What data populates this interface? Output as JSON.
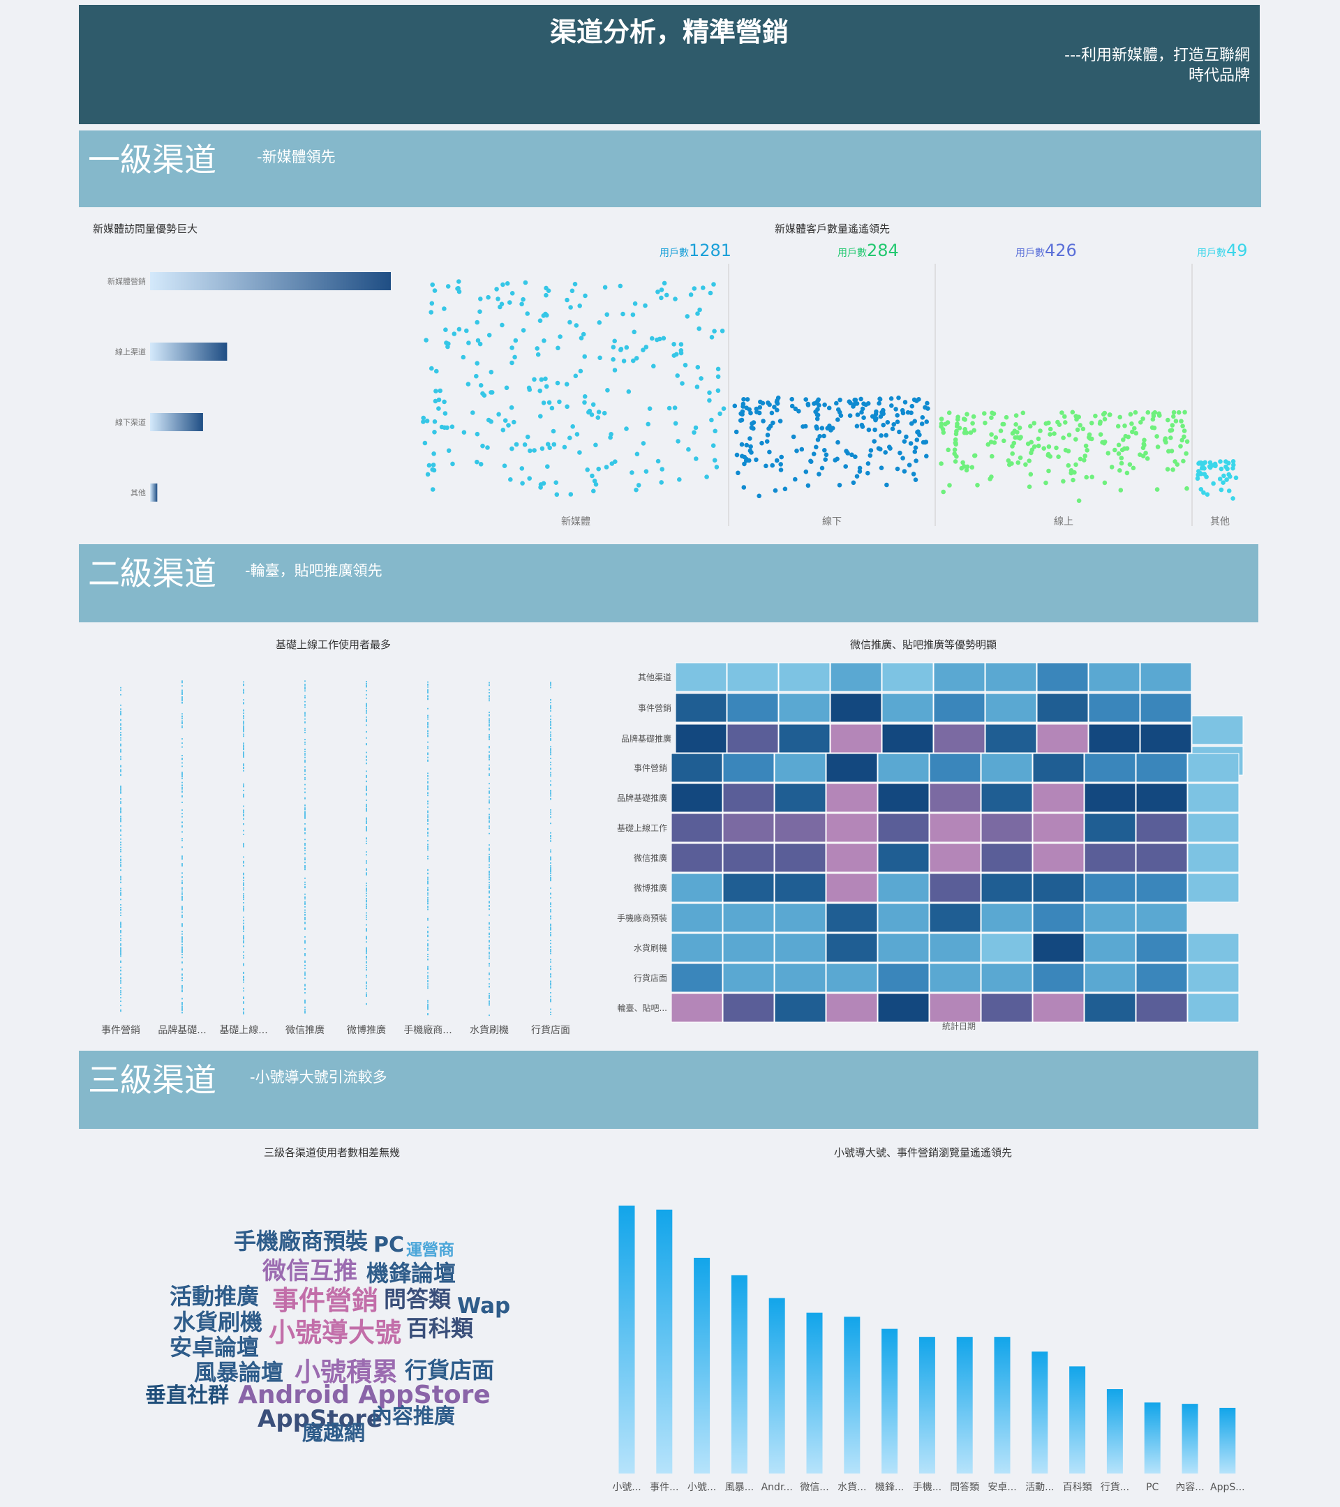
{
  "header": {
    "title": "渠道分析，精準營銷",
    "subtitle_line1": "---利用新媒體，打造互聯網",
    "subtitle_line2": "時代品牌"
  },
  "sections": [
    {
      "title": "一級渠道",
      "subtitle": "-新媒體領先"
    },
    {
      "title": "二級渠道",
      "subtitle": "-輪臺，貼吧推廣領先"
    },
    {
      "title": "三級渠道",
      "subtitle": "-小號導大號引流較多"
    }
  ],
  "chart_data": [
    {
      "id": "level1-bar",
      "type": "bar",
      "orientation": "horizontal",
      "title": "新媒體訪問量優勢巨大",
      "categories": [
        "新媒體營銷",
        "線上渠道",
        "線下渠道",
        "其他"
      ],
      "values": [
        100,
        32,
        22,
        3
      ],
      "colors": [
        "#d4e9fb",
        "#1f4e84"
      ]
    },
    {
      "id": "level1-scatter",
      "type": "scatter",
      "title": "新媒體客戶數量遙遙領先",
      "groups": [
        {
          "name": "新媒體",
          "label": "用戶數",
          "count": 1281,
          "color": "#35c6e6"
        },
        {
          "name": "線下",
          "label": "用戶數",
          "count": 284,
          "color": "#0f8ad0"
        },
        {
          "name": "線上",
          "label": "用戶數",
          "count": 426,
          "color": "#6ef07d"
        },
        {
          "name": "其他",
          "label": "用戶數",
          "count": 49,
          "color": "#3ad6ea"
        }
      ],
      "label_colors": [
        "#1aa0d8",
        "#23c870",
        "#5a6fd8",
        "#3ad6ea"
      ]
    },
    {
      "id": "level2-strip",
      "type": "scatter",
      "title": "基礎上線工作使用者最多",
      "categories": [
        "事件營銷",
        "品牌基礎...",
        "基礎上線...",
        "微信推廣",
        "微博推廣",
        "手機廠商...",
        "水貨刷機",
        "行貨店面"
      ],
      "color": "#5ec3ea"
    },
    {
      "id": "level2-heatmap",
      "type": "heatmap",
      "title": "微信推廣、貼吧推廣等優勢明顯",
      "xlabel": "統計日期",
      "rows": [
        "其他渠道",
        "事件營銷",
        "品牌基礎推廣",
        "事件營銷",
        "品牌基礎推廣",
        "基礎上線工作",
        "微信推廣",
        "微博推廣",
        "手機廠商預裝",
        "水貨刷機",
        "行貨店面",
        "輪臺、貼吧..."
      ],
      "palette": [
        "#7dc3e3",
        "#5aa8d2",
        "#3a86bb",
        "#1f5e93",
        "#13487f",
        "#5a5e98",
        "#7b6aa2",
        "#b486b8"
      ],
      "cells": [
        [
          0,
          0,
          0,
          1,
          0,
          1,
          1,
          2,
          1,
          1,
          null
        ],
        [
          3,
          2,
          1,
          4,
          1,
          2,
          1,
          3,
          2,
          2,
          0
        ],
        [
          4,
          5,
          3,
          7,
          4,
          6,
          3,
          7,
          4,
          4,
          0
        ],
        [
          3,
          2,
          1,
          4,
          1,
          2,
          1,
          3,
          2,
          2,
          0
        ],
        [
          4,
          5,
          3,
          7,
          4,
          6,
          3,
          7,
          4,
          4,
          0
        ],
        [
          5,
          6,
          6,
          7,
          5,
          7,
          6,
          7,
          3,
          5,
          0
        ],
        [
          5,
          5,
          5,
          7,
          3,
          7,
          5,
          7,
          5,
          5,
          0
        ],
        [
          1,
          3,
          3,
          7,
          1,
          5,
          3,
          3,
          2,
          2,
          0
        ],
        [
          1,
          1,
          1,
          3,
          1,
          3,
          1,
          2,
          1,
          1,
          null
        ],
        [
          1,
          1,
          1,
          3,
          1,
          1,
          0,
          4,
          1,
          2,
          0
        ],
        [
          2,
          1,
          1,
          1,
          2,
          1,
          1,
          2,
          1,
          2,
          0
        ],
        [
          7,
          5,
          3,
          7,
          4,
          7,
          5,
          7,
          3,
          5,
          0
        ]
      ]
    },
    {
      "id": "level3-wordcloud",
      "type": "table",
      "title": "三級各渠道使用者數相差無幾",
      "words": [
        {
          "text": "手機廠商預裝",
          "color": "#2e5c8a"
        },
        {
          "text": "PC",
          "color": "#2e5c8a"
        },
        {
          "text": "運營商",
          "color": "#4ba6d9"
        },
        {
          "text": "微信互推",
          "color": "#9b6bb0"
        },
        {
          "text": "機鋒論壇",
          "color": "#2e5c8a"
        },
        {
          "text": "活動推廣",
          "color": "#2e5c8a"
        },
        {
          "text": "事件營銷",
          "color": "#c26ea9"
        },
        {
          "text": "問答類",
          "color": "#3a4f7a"
        },
        {
          "text": "Wap",
          "color": "#2e5c8a"
        },
        {
          "text": "水貨刷機",
          "color": "#2e5c8a"
        },
        {
          "text": "小號導大號",
          "color": "#c26ea9"
        },
        {
          "text": "百科類",
          "color": "#3a4f7a"
        },
        {
          "text": "安卓論壇",
          "color": "#2e5c8a"
        },
        {
          "text": "風暴論壇",
          "color": "#2e5c8a"
        },
        {
          "text": "小號積累",
          "color": "#9b6bb0"
        },
        {
          "text": "行貨店面",
          "color": "#2e5c8a"
        },
        {
          "text": "垂直社群",
          "color": "#1f4e7a"
        },
        {
          "text": "Android AppStore",
          "color": "#8a64a8"
        },
        {
          "text": "AppStore",
          "color": "#3a4f7a"
        },
        {
          "text": "內容推廣",
          "color": "#2e5c8a"
        },
        {
          "text": "魔趣網",
          "color": "#2e5c8a"
        }
      ]
    },
    {
      "id": "level3-bar",
      "type": "bar",
      "title": "小號導大號、事件營銷瀏覽量遙遙領先",
      "categories": [
        "小號...",
        "事件...",
        "小號...",
        "風暴...",
        "Andr...",
        "微信...",
        "水貨...",
        "機鋒...",
        "手機...",
        "問答類",
        "安卓...",
        "活動...",
        "百科類",
        "行貨...",
        "PC",
        "內容...",
        "AppS..."
      ],
      "values": [
        100,
        98.5,
        80.5,
        74,
        65.5,
        60,
        58.5,
        54,
        51,
        51,
        51,
        45.5,
        40,
        31.5,
        26.5,
        26,
        24.5
      ],
      "ylim": [
        0,
        100
      ],
      "colors": [
        "#12a5ea",
        "#b6e3fb"
      ]
    }
  ]
}
